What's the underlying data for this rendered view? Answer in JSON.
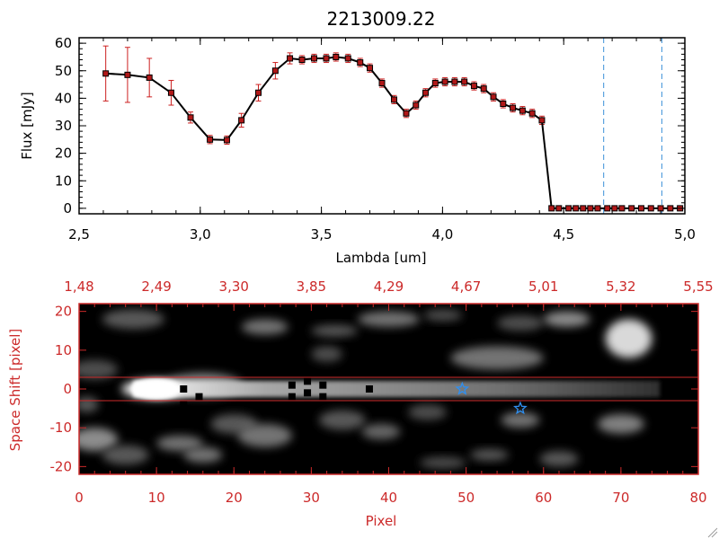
{
  "colors": {
    "plot_line": "#000000",
    "error_bar": "#cc2020",
    "marker_fill": "#b01818",
    "marker_edge": "#000000",
    "cutoff_line": "#3a8fd8",
    "bottom_frame": "#cc2a2a",
    "image_background": "#000000",
    "star_marker": "#2f8ff0"
  },
  "chart_data": [
    {
      "type": "scatter",
      "title": "2213009.22",
      "xlabel": "Lambda [um]",
      "ylabel": "Flux [mJy]",
      "xlim": [
        2.5,
        5.0
      ],
      "ylim": [
        -2,
        62
      ],
      "xticks": [
        "2.5",
        "3.0",
        "3.5",
        "4.0",
        "4.5",
        "5.0"
      ],
      "yticks": [
        "0",
        "10",
        "20",
        "30",
        "40",
        "50",
        "60"
      ],
      "grid": false,
      "connected": true,
      "vertical_lines_x": [
        4.665,
        4.905
      ],
      "series": [
        {
          "x": [
            2.61,
            2.7,
            2.79,
            2.88,
            2.96,
            3.04,
            3.11,
            3.17,
            3.24,
            3.31,
            3.37,
            3.42,
            3.47,
            3.52,
            3.56,
            3.61,
            3.66,
            3.7,
            3.75,
            3.8,
            3.85,
            3.89,
            3.93,
            3.97,
            4.01,
            4.05,
            4.09,
            4.13,
            4.17,
            4.21,
            4.25,
            4.29,
            4.33,
            4.37,
            4.41,
            4.45,
            4.48,
            4.52,
            4.55,
            4.58,
            4.61,
            4.64,
            4.68,
            4.71,
            4.74,
            4.78,
            4.82,
            4.86,
            4.9,
            4.94,
            4.98
          ],
          "y": [
            49,
            48.5,
            47.5,
            42,
            33,
            25,
            24.8,
            32,
            42,
            50,
            54.5,
            54,
            54.5,
            54.5,
            55,
            54.5,
            53,
            51,
            45.5,
            39.5,
            34.5,
            37.5,
            42,
            45.5,
            46,
            46,
            46,
            44.5,
            43.5,
            40.5,
            38,
            36.5,
            35.5,
            34.5,
            32,
            0,
            0,
            0,
            0,
            0,
            0,
            0,
            0,
            0,
            0,
            0,
            0,
            0,
            0,
            0,
            0
          ],
          "yerr": [
            10,
            10,
            7,
            4.5,
            2,
            1.5,
            1.5,
            2.5,
            3,
            3,
            2,
            1.5,
            1.5,
            1.5,
            1.5,
            1.5,
            1.5,
            1.5,
            1.5,
            1.5,
            1.5,
            1.5,
            1.5,
            1.5,
            1.5,
            1.5,
            1.5,
            1.5,
            1.5,
            1.5,
            1.5,
            1.5,
            1.5,
            1.5,
            1.5,
            0,
            0,
            0,
            0,
            0,
            0,
            0,
            0,
            0,
            0,
            0,
            0,
            0,
            0,
            0,
            0
          ]
        }
      ]
    },
    {
      "type": "heatmap",
      "xlabel": "Pixel",
      "ylabel": "Space Shift [pixel]",
      "xlim": [
        0,
        80
      ],
      "ylim": [
        -22,
        22
      ],
      "xticks": [
        "0",
        "10",
        "20",
        "30",
        "40",
        "50",
        "60",
        "70",
        "80"
      ],
      "yticks": [
        "-20",
        "-10",
        "0",
        "10",
        "20"
      ],
      "top_axis_ticks": [
        "1.48",
        "2.49",
        "3.30",
        "3.85",
        "4.29",
        "4.67",
        "5.01",
        "5.32",
        "5.55"
      ],
      "horizontal_lines_y": [
        3,
        -3
      ],
      "spectral_trace": {
        "x_start": 7,
        "x_end": 75,
        "y_center": 0,
        "peak_x": 10
      },
      "blobs": [
        {
          "x": 10,
          "y": 0,
          "w": 9,
          "h": 5,
          "level": 0.95
        },
        {
          "x": 16,
          "y": 1,
          "w": 10,
          "h": 6,
          "level": 0.55
        },
        {
          "x": 7,
          "y": 18,
          "w": 8,
          "h": 5,
          "level": 0.35
        },
        {
          "x": 24,
          "y": 16,
          "w": 6,
          "h": 4,
          "level": 0.45
        },
        {
          "x": 32,
          "y": 9,
          "w": 4,
          "h": 4,
          "level": 0.3
        },
        {
          "x": 33,
          "y": 15,
          "w": 6,
          "h": 3,
          "level": 0.35
        },
        {
          "x": 40,
          "y": 18,
          "w": 8,
          "h": 4,
          "level": 0.45
        },
        {
          "x": 47,
          "y": 19,
          "w": 5,
          "h": 3,
          "level": 0.3
        },
        {
          "x": 54,
          "y": 8,
          "w": 12,
          "h": 6,
          "level": 0.45
        },
        {
          "x": 57,
          "y": 17,
          "w": 6,
          "h": 4,
          "level": 0.3
        },
        {
          "x": 63,
          "y": 18,
          "w": 6,
          "h": 4,
          "level": 0.55
        },
        {
          "x": 71,
          "y": 13,
          "w": 6,
          "h": 10,
          "level": 0.85
        },
        {
          "x": 2,
          "y": 5,
          "w": 6,
          "h": 5,
          "level": 0.3
        },
        {
          "x": 1,
          "y": -4,
          "w": 3,
          "h": 4,
          "level": 0.35
        },
        {
          "x": 2,
          "y": -13,
          "w": 6,
          "h": 6,
          "level": 0.55
        },
        {
          "x": 6,
          "y": -17,
          "w": 6,
          "h": 5,
          "level": 0.35
        },
        {
          "x": 13,
          "y": -14,
          "w": 6,
          "h": 4,
          "level": 0.45
        },
        {
          "x": 16,
          "y": -17,
          "w": 5,
          "h": 4,
          "level": 0.45
        },
        {
          "x": 20,
          "y": -9,
          "w": 6,
          "h": 5,
          "level": 0.35
        },
        {
          "x": 24,
          "y": -12,
          "w": 7,
          "h": 6,
          "level": 0.45
        },
        {
          "x": 34,
          "y": -8,
          "w": 6,
          "h": 5,
          "level": 0.35
        },
        {
          "x": 39,
          "y": -11,
          "w": 5,
          "h": 4,
          "level": 0.4
        },
        {
          "x": 45,
          "y": -6,
          "w": 5,
          "h": 4,
          "level": 0.3
        },
        {
          "x": 47,
          "y": -19,
          "w": 6,
          "h": 3,
          "level": 0.3
        },
        {
          "x": 53,
          "y": -17,
          "w": 5,
          "h": 3,
          "level": 0.35
        },
        {
          "x": 57,
          "y": -8,
          "w": 5,
          "h": 4,
          "level": 0.45
        },
        {
          "x": 62,
          "y": -18,
          "w": 5,
          "h": 4,
          "level": 0.35
        },
        {
          "x": 70,
          "y": -9,
          "w": 6,
          "h": 5,
          "level": 0.5
        }
      ],
      "dark_pixels": [
        {
          "x": 13.5,
          "y": 0
        },
        {
          "x": 13.5,
          "y": -4
        },
        {
          "x": 15.5,
          "y": -2
        },
        {
          "x": 27.5,
          "y": 1
        },
        {
          "x": 27.5,
          "y": -2
        },
        {
          "x": 29.5,
          "y": 2
        },
        {
          "x": 29.5,
          "y": -1
        },
        {
          "x": 29.5,
          "y": -4
        },
        {
          "x": 31.5,
          "y": 1
        },
        {
          "x": 31.5,
          "y": -2
        },
        {
          "x": 37.5,
          "y": 0
        }
      ],
      "star_markers": [
        {
          "x": 49.5,
          "y": 0,
          "icon": "star-icon"
        },
        {
          "x": 57,
          "y": -5,
          "icon": "star-icon"
        }
      ]
    }
  ]
}
